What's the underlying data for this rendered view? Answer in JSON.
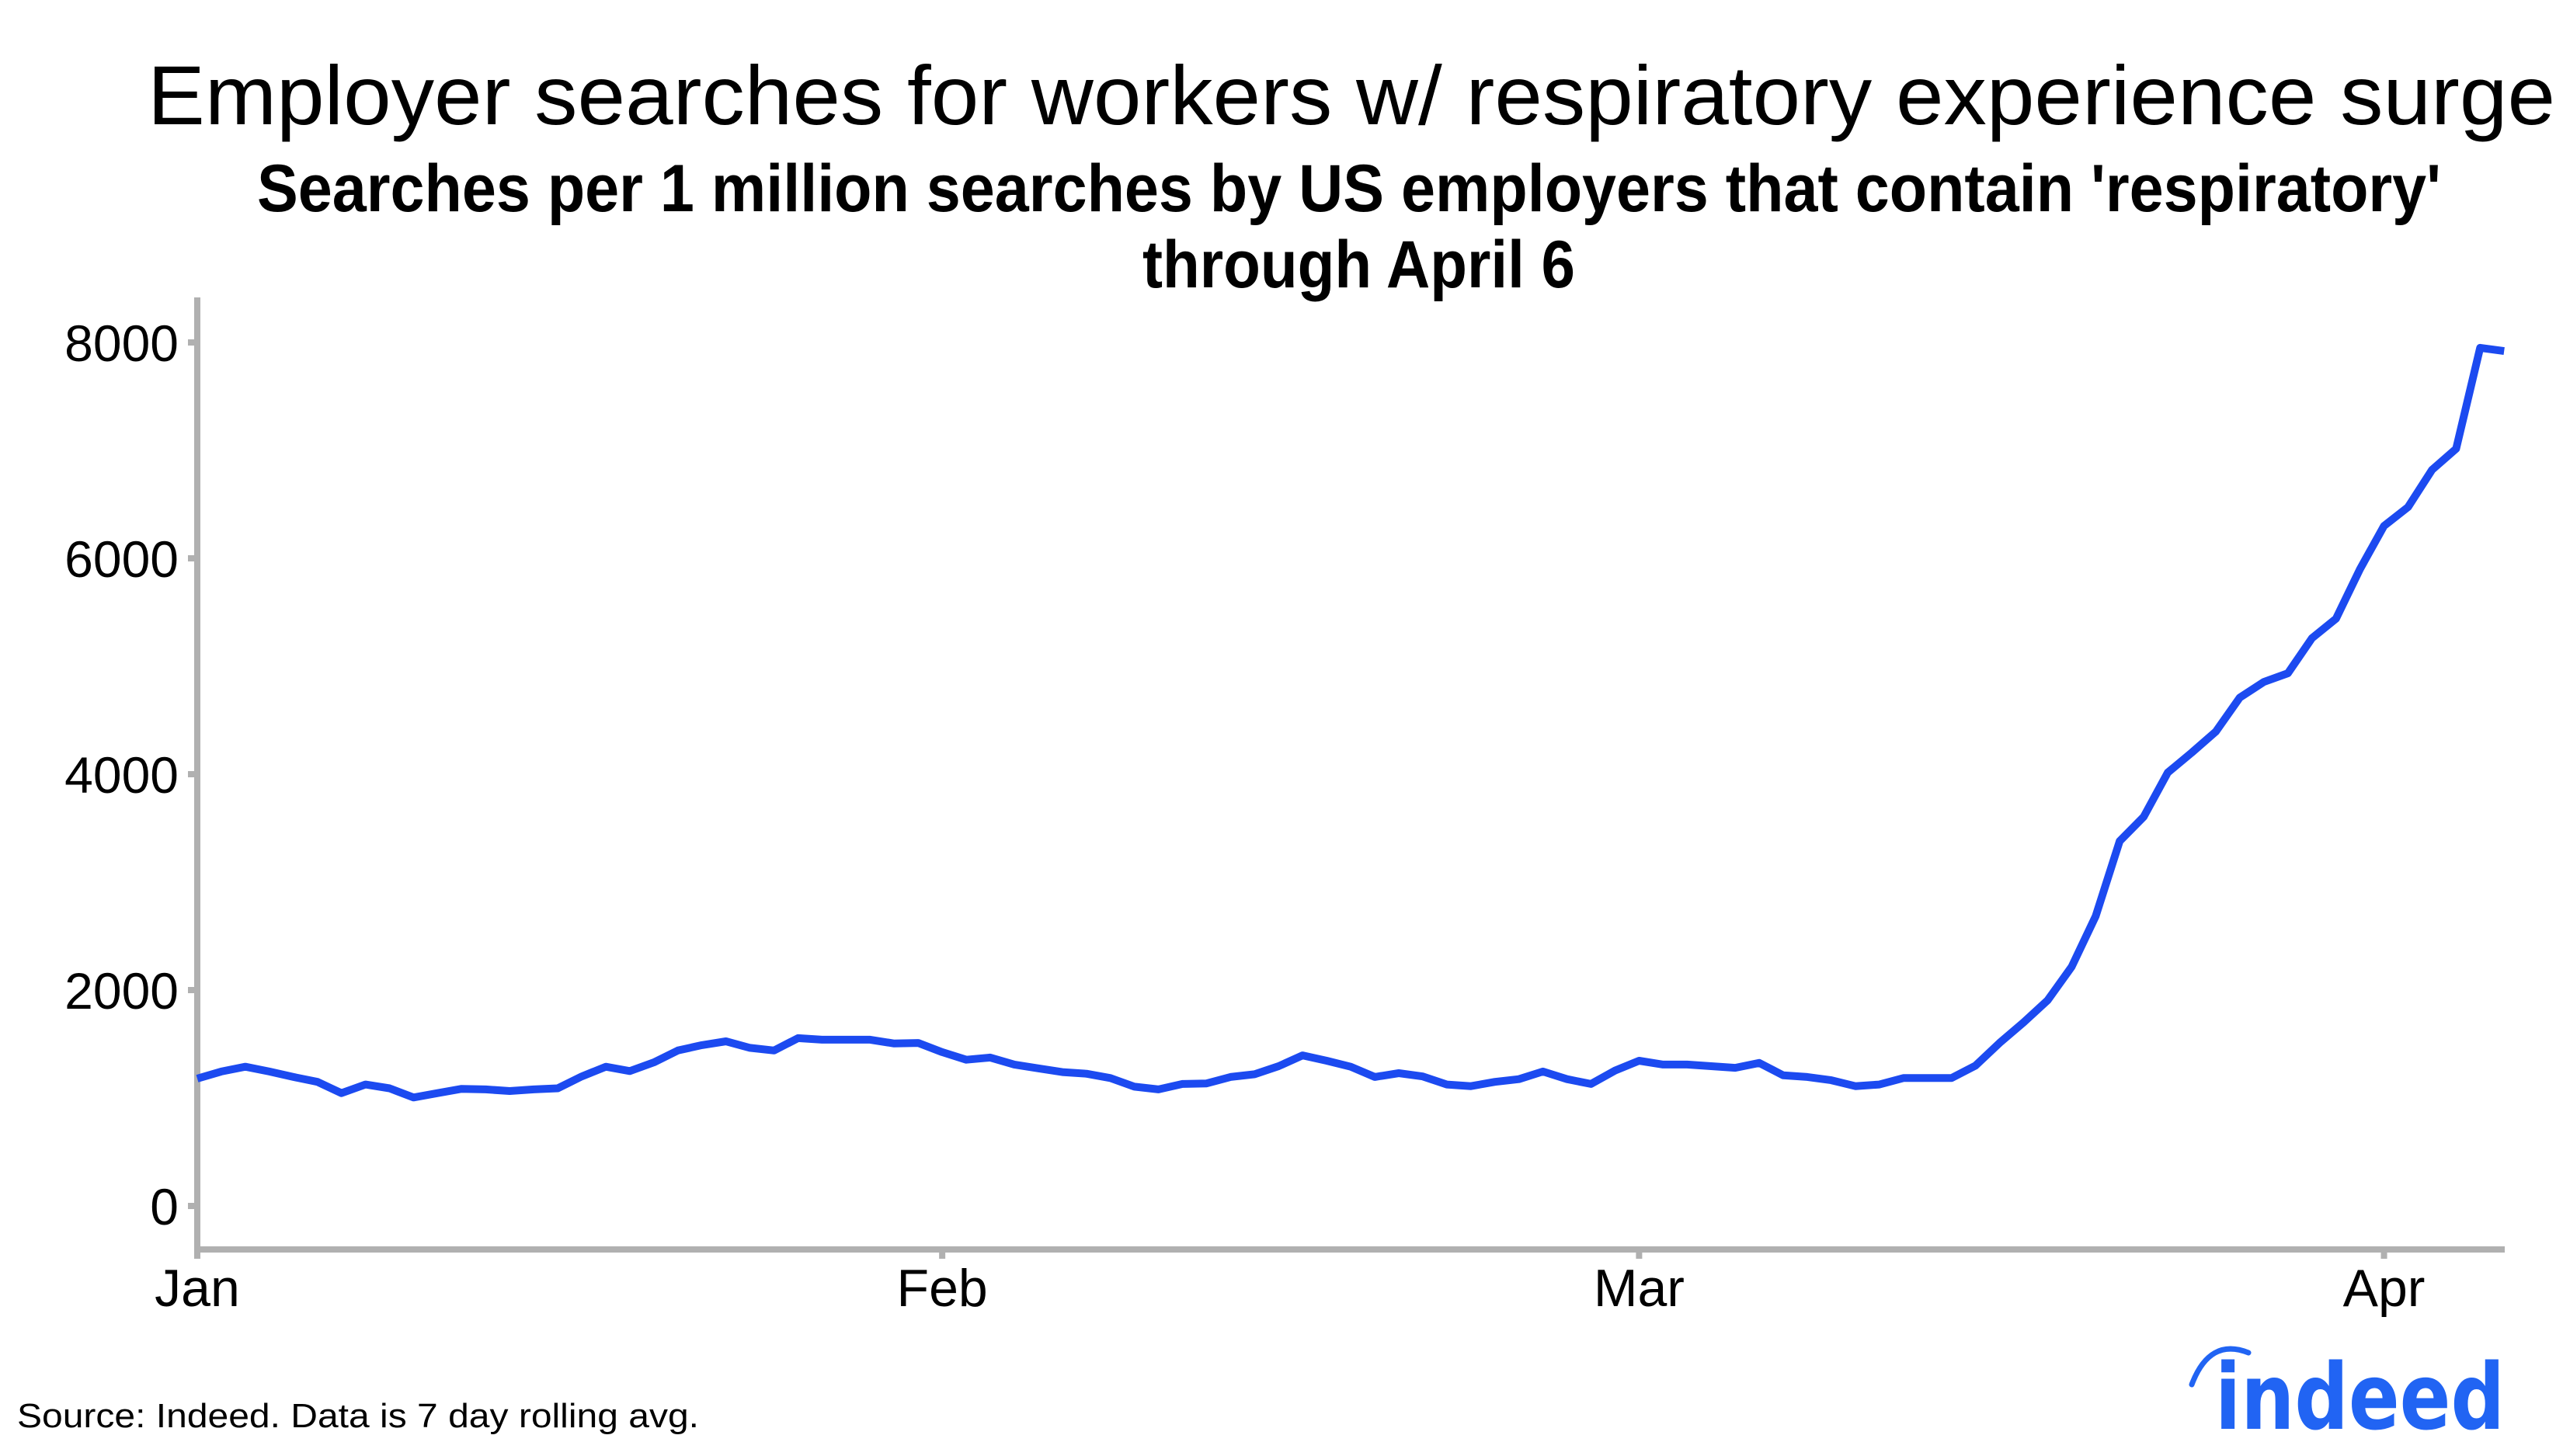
{
  "header": {
    "title": "Employer searches for workers w/ respiratory experience surge",
    "subtitle_line1": "Searches per 1 million searches by US employers that contain 'respiratory'",
    "subtitle_line2": "through April 6"
  },
  "axes": {
    "y_ticks": [
      {
        "value": 0,
        "label": "0"
      },
      {
        "value": 2000,
        "label": "2000"
      },
      {
        "value": 4000,
        "label": "4000"
      },
      {
        "value": 6000,
        "label": "6000"
      },
      {
        "value": 8000,
        "label": "8000"
      }
    ],
    "x_ticks": [
      {
        "day": 0,
        "label": "Jan"
      },
      {
        "day": 31,
        "label": "Feb"
      },
      {
        "day": 60,
        "label": "Mar"
      },
      {
        "day": 91,
        "label": "Apr"
      }
    ]
  },
  "footer": {
    "source": "Source: Indeed. Data is 7 day rolling avg.",
    "logo_text": "indeed"
  },
  "colors": {
    "line": "#1c4af0",
    "axis": "#b0b0b0",
    "logo": "#2164f3",
    "text": "#000000"
  },
  "chart_data": {
    "type": "line",
    "title": "Employer searches for workers w/ respiratory experience surge",
    "subtitle": "Searches per 1 million searches by US employers that contain 'respiratory' through April 6",
    "xlabel": "",
    "ylabel": "",
    "ylim": [
      -350,
      8400
    ],
    "x_range_days_from_jan1": [
      0,
      96
    ],
    "grid": false,
    "legend": null,
    "x_tick_labels": [
      "Jan",
      "Feb",
      "Mar",
      "Apr"
    ],
    "y_tick_labels": [
      "0",
      "2000",
      "4000",
      "6000",
      "8000"
    ],
    "series": [
      {
        "name": "Searches per 1M containing 'respiratory' (7-day rolling avg)",
        "x_start": "Jan 1",
        "x_end": "Apr 6",
        "step": "1 day",
        "values": [
          1180,
          1245,
          1290,
          1245,
          1195,
          1150,
          1045,
          1125,
          1090,
          1005,
          1045,
          1085,
          1080,
          1065,
          1080,
          1090,
          1200,
          1290,
          1250,
          1330,
          1440,
          1490,
          1525,
          1465,
          1440,
          1555,
          1540,
          1540,
          1540,
          1505,
          1510,
          1425,
          1355,
          1375,
          1310,
          1275,
          1240,
          1225,
          1185,
          1105,
          1080,
          1130,
          1135,
          1195,
          1220,
          1295,
          1395,
          1345,
          1290,
          1195,
          1230,
          1200,
          1125,
          1110,
          1150,
          1175,
          1245,
          1175,
          1130,
          1255,
          1345,
          1310,
          1310,
          1295,
          1280,
          1325,
          1210,
          1195,
          1165,
          1110,
          1125,
          1185,
          1185,
          1185,
          1300,
          1510,
          1700,
          1905,
          2215,
          2685,
          3380,
          3605,
          4015,
          4200,
          4395,
          4710,
          4855,
          4935,
          5260,
          5440,
          5900,
          6300,
          6475,
          6820,
          7015,
          7950,
          7920
        ]
      }
    ],
    "annotations": [
      "Source: Indeed. Data is 7 day rolling avg."
    ]
  }
}
